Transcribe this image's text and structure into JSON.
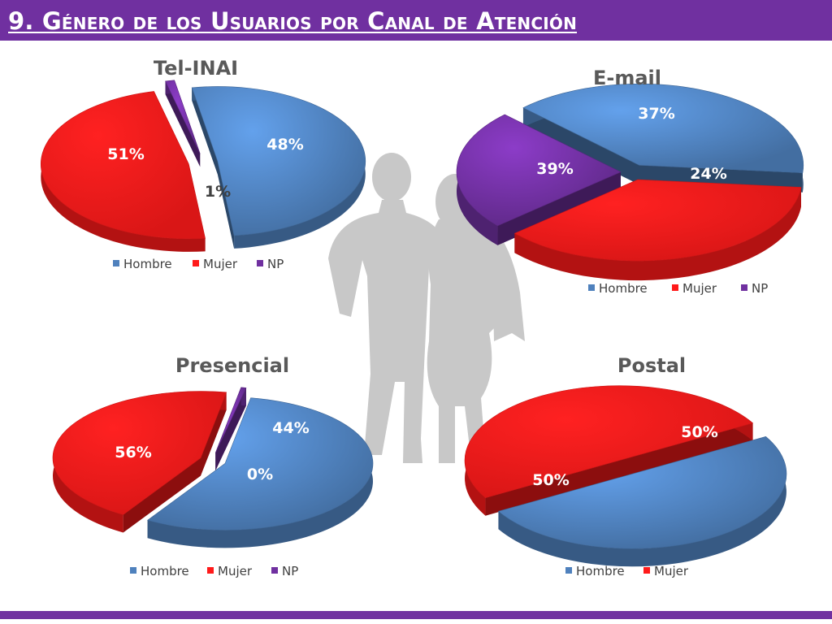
{
  "header": {
    "title": "9. Género de los Usuarios por Canal de Atención"
  },
  "colors": {
    "Hombre": "#4f81bd",
    "Mujer": "#ff1a1a",
    "NP": "#7030a0",
    "header": "#7030a0"
  },
  "chart_data": [
    {
      "type": "pie",
      "title": "Tel-INAI",
      "categories": [
        "Hombre",
        "Mujer",
        "NP"
      ],
      "values": [
        51,
        48,
        1
      ],
      "labels": [
        "51%",
        "48%",
        "1%"
      ],
      "legend": [
        "Hombre",
        "Mujer",
        "NP"
      ],
      "legend_position": "bottom"
    },
    {
      "type": "pie",
      "title": "E-mail",
      "categories": [
        "Hombre",
        "Mujer",
        "NP"
      ],
      "values": [
        39,
        37,
        24
      ],
      "labels": [
        "39%",
        "37%",
        "24%"
      ],
      "legend": [
        "Hombre",
        "Mujer",
        "NP"
      ],
      "legend_position": "bottom"
    },
    {
      "type": "pie",
      "title": "Presencial",
      "categories": [
        "Hombre",
        "Mujer",
        "NP"
      ],
      "values": [
        56,
        44,
        0
      ],
      "labels": [
        "56%",
        "44%",
        "0%"
      ],
      "legend": [
        "Hombre",
        "Mujer",
        "NP"
      ],
      "legend_position": "bottom"
    },
    {
      "type": "pie",
      "title": "Postal",
      "categories": [
        "Hombre",
        "Mujer"
      ],
      "values": [
        50,
        50
      ],
      "labels": [
        "50%",
        "50%"
      ],
      "legend": [
        "Hombre",
        "Mujer"
      ],
      "legend_position": "bottom"
    }
  ]
}
